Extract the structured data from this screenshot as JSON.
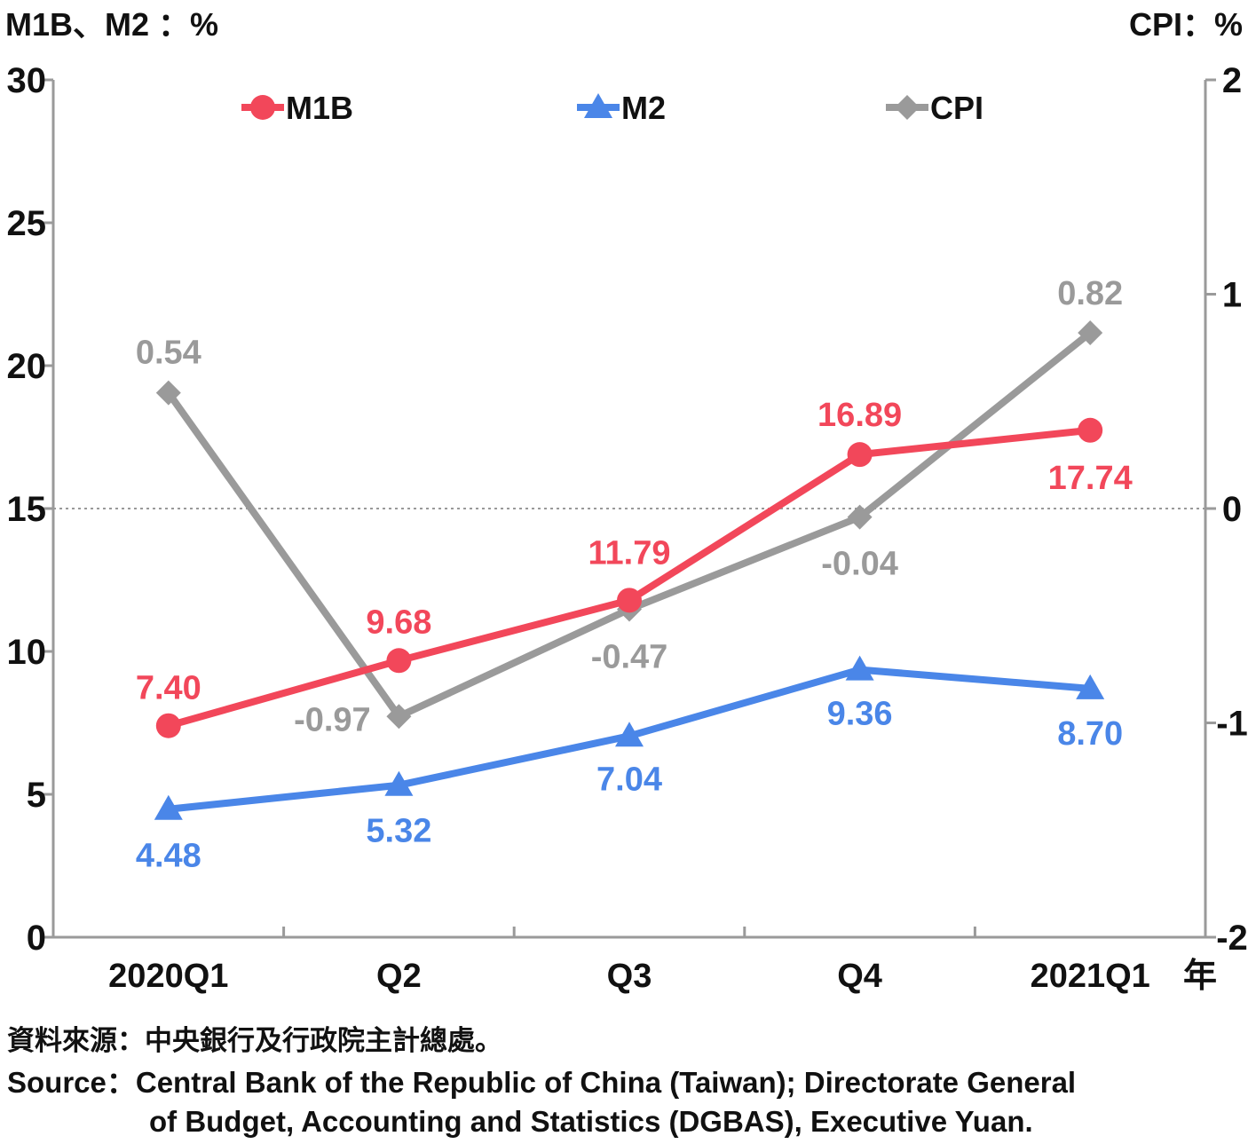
{
  "chart_data": {
    "type": "line",
    "left_axis_label": "M1B、M2 ：%",
    "right_axis_label": "CPI：%",
    "x_unit_label": "年",
    "categories": [
      "2020Q1",
      "Q2",
      "Q3",
      "Q4",
      "2021Q1"
    ],
    "left_ylim": [
      0,
      30
    ],
    "left_ticks": [
      "0",
      "5",
      "10",
      "15",
      "20",
      "25",
      "30"
    ],
    "right_ylim": [
      -2,
      2
    ],
    "right_ticks": [
      "-2",
      "-1",
      "0",
      "1",
      "2"
    ],
    "zero_reference_line": "dotted at CPI 0",
    "legend_position": "top",
    "series": [
      {
        "name": "M1B",
        "axis": "left",
        "color": "#F2475A",
        "marker": "circle",
        "values": [
          7.4,
          9.68,
          11.79,
          16.89,
          17.74
        ],
        "labels": [
          "7.40",
          "9.68",
          "11.79",
          "16.89",
          "17.74"
        ]
      },
      {
        "name": "M2",
        "axis": "left",
        "color": "#4A86E8",
        "marker": "triangle",
        "values": [
          4.48,
          5.32,
          7.04,
          9.36,
          8.7
        ],
        "labels": [
          "4.48",
          "5.32",
          "7.04",
          "9.36",
          "8.70"
        ]
      },
      {
        "name": "CPI",
        "axis": "right",
        "color": "#9A9A9A",
        "marker": "diamond",
        "values": [
          0.54,
          -0.97,
          -0.47,
          -0.04,
          0.82
        ],
        "labels": [
          "0.54",
          "-0.97",
          "-0.47",
          "-0.04",
          "0.82"
        ]
      }
    ]
  },
  "source": {
    "zh": "資料來源：中央銀行及行政院主計總處。",
    "en_line1": "Source：Central Bank of the Republic of China (Taiwan); Directorate General",
    "en_line2": "of Budget, Accounting and Statistics (DGBAS), Executive Yuan."
  }
}
